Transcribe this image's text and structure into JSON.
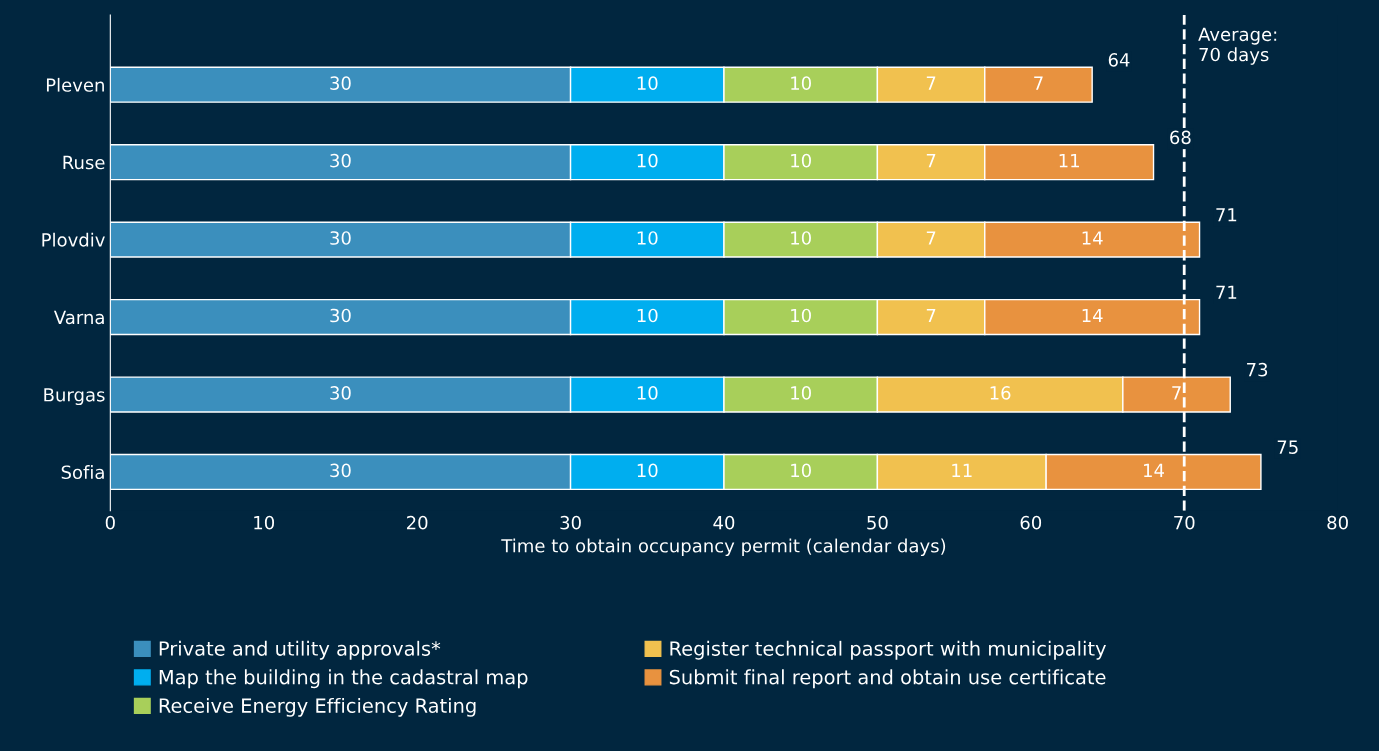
{
  "chart_data": {
    "type": "bar",
    "orientation": "horizontal",
    "stacked": true,
    "data_labels": true,
    "xlabel": "Time to obtain occupancy permit (calendar days)",
    "categories": [
      "Pleven",
      "Ruse",
      "Plovdiv",
      "Varna",
      "Burgas",
      "Sofia"
    ],
    "series": [
      {
        "name": "Private and utility approvals*",
        "color": "#3b8fbd",
        "values": [
          30,
          30,
          30,
          30,
          30,
          30
        ]
      },
      {
        "name": "Map the building in the cadastral map",
        "color": "#00aeef",
        "values": [
          10,
          10,
          10,
          10,
          10,
          10
        ]
      },
      {
        "name": "Receive Energy Efficiency Rating",
        "color": "#a8cf5a",
        "values": [
          10,
          10,
          10,
          10,
          10,
          10
        ]
      },
      {
        "name": "Register technical passport with municipality",
        "color": "#f1c14f",
        "values": [
          7,
          7,
          7,
          7,
          16,
          11
        ]
      },
      {
        "name": "Submit final report and obtain use certificate",
        "color": "#e8923f",
        "values": [
          7,
          11,
          14,
          14,
          7,
          14
        ]
      }
    ],
    "totals": [
      "64",
      "68",
      "71",
      "71",
      "73",
      "75"
    ],
    "xlim": [
      0,
      80
    ],
    "xticks": [
      0,
      10,
      20,
      30,
      40,
      50,
      60,
      70,
      80
    ],
    "ref_lines": [
      {
        "axis": "x",
        "value": 70,
        "label": "Average:\n70 days",
        "color": "#ffffff",
        "line_style": "dashed"
      }
    ],
    "grid": false,
    "legend": "bottom"
  }
}
